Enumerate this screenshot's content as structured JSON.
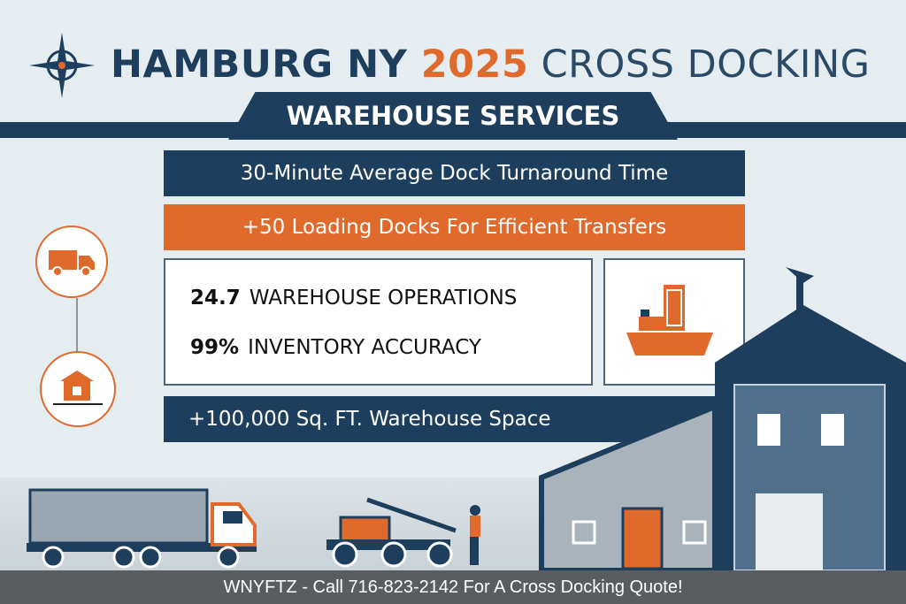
{
  "header": {
    "title_part1": "HAMBURG NY ",
    "title_year": "2025",
    "title_part2": " CROSS DOCKING",
    "subtitle": "WAREHOUSE SERVICES"
  },
  "features": {
    "turnaround": "30-Minute Average Dock Turnaround Time",
    "docks": "+50 Loading Docks For Efficient Transfers",
    "stats": [
      {
        "value": "24.7",
        "label": "WAREHOUSE OPERATIONS"
      },
      {
        "value": "99%",
        "label": "INVENTORY ACCURACY"
      }
    ],
    "space": "+100,000 Sq. FT. Warehouse Space"
  },
  "footer": {
    "text": "WNYFTZ - Call 716-823-2142 For A Cross Docking Quote!"
  },
  "colors": {
    "navy": "#1d3e5c",
    "orange": "#e06a2c",
    "background": "#e6edf1"
  },
  "icons": [
    "compass-icon",
    "truck-icon",
    "building-icon",
    "cargo-ship-icon",
    "warehouse-illustration",
    "semi-truck-illustration",
    "forklift-illustration"
  ]
}
